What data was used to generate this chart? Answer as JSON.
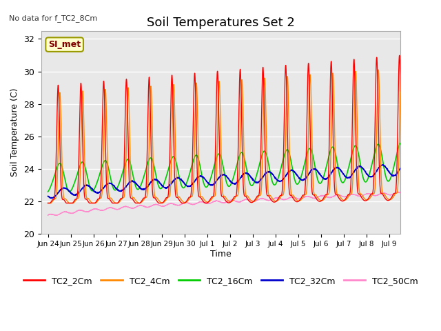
{
  "title": "Soil Temperatures Set 2",
  "ylabel": "Soil Temperature (C)",
  "xlabel": "Time",
  "top_left_note": "No data for f_TC2_8Cm",
  "annotation_box": "SI_met",
  "ylim": [
    20,
    32.5
  ],
  "yticks": [
    20,
    22,
    24,
    26,
    28,
    30,
    32
  ],
  "bg_color": "#e8e8e8",
  "grid_color": "white",
  "series": {
    "TC2_2Cm": {
      "color": "#ff0000",
      "lw": 1.0
    },
    "TC2_4Cm": {
      "color": "#ff8800",
      "lw": 1.0
    },
    "TC2_16Cm": {
      "color": "#00cc00",
      "lw": 1.2
    },
    "TC2_32Cm": {
      "color": "#0000cc",
      "lw": 1.2
    },
    "TC2_50Cm": {
      "color": "#ff88cc",
      "lw": 1.0
    }
  },
  "xtick_labels": [
    "Jun 24",
    "Jun 25",
    "Jun 26",
    "Jun 27",
    "Jun 28",
    "Jun 29",
    "Jun 30",
    "Jul 1",
    "Jul 2",
    "Jul 3",
    "Jul 4",
    "Jul 5",
    "Jul 6",
    "Jul 7",
    "Jul 8",
    "Jul 9"
  ],
  "figsize": [
    6.4,
    4.8
  ],
  "dpi": 100
}
